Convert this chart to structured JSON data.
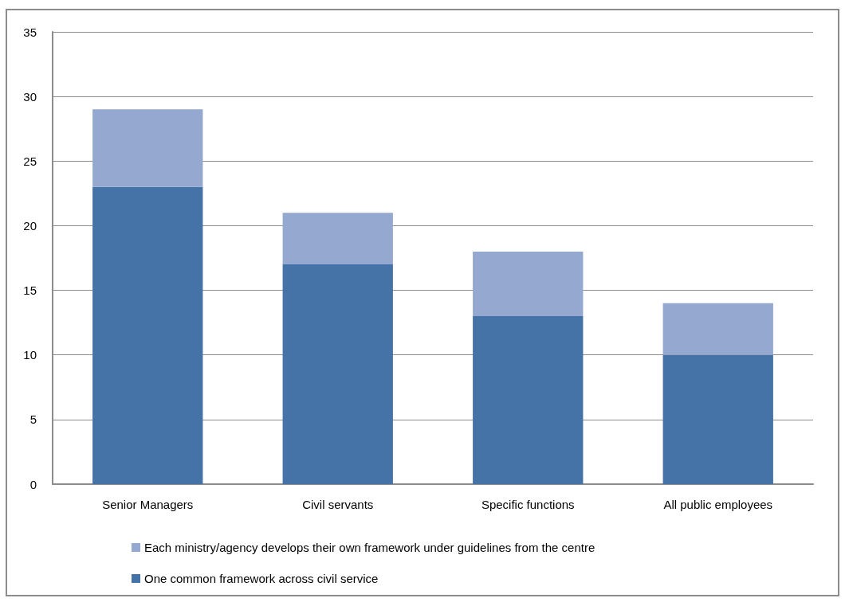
{
  "chart_data": {
    "type": "bar",
    "categories": [
      "Senior Managers",
      "Civil servants",
      "Specific functions",
      "All public employees"
    ],
    "stacked": true,
    "series": [
      {
        "name": "One common framework across civil service",
        "color": "#4573a7",
        "values": [
          23,
          17,
          13,
          10
        ]
      },
      {
        "name": "Each ministry/agency develops their own framework under guidelines from the centre",
        "color": "#95a9d0",
        "values": [
          6,
          4,
          5,
          4
        ]
      }
    ],
    "ylim": [
      0,
      35
    ],
    "yticks": [
      0,
      5,
      10,
      15,
      20,
      25,
      30,
      35
    ],
    "grid": "y",
    "legend": "bottom"
  }
}
